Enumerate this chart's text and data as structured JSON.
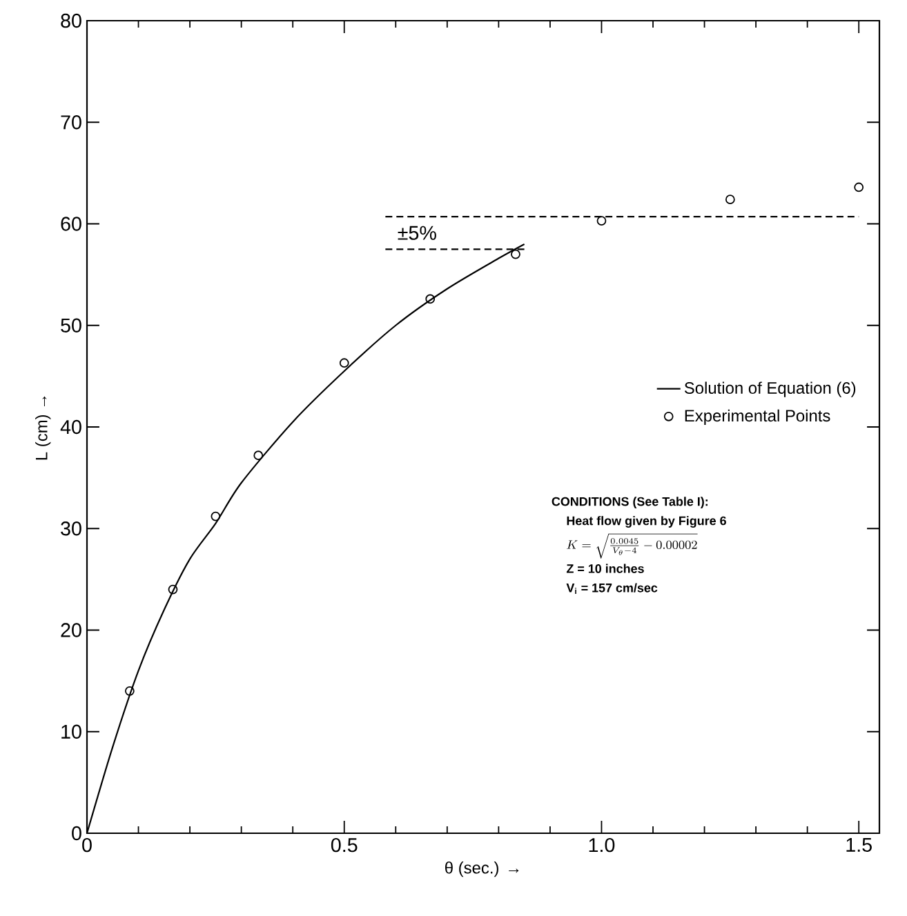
{
  "chart_data": {
    "type": "line",
    "xlabel": "θ (sec.) →",
    "ylabel": "L (cm) →",
    "xlim": [
      0,
      1.54
    ],
    "ylim": [
      0,
      80
    ],
    "xticks": [
      0,
      {
        "value": 0.1,
        "label": null
      },
      {
        "value": 0.2,
        "label": null
      },
      {
        "value": 0.3,
        "label": null
      },
      {
        "value": 0.4,
        "label": null
      },
      0.5,
      {
        "value": 0.6,
        "label": null
      },
      {
        "value": 0.7,
        "label": null
      },
      {
        "value": 0.8,
        "label": null
      },
      {
        "value": 0.9,
        "label": null
      },
      {
        "value": 1,
        "label": "1.0"
      },
      {
        "value": 1.1,
        "label": null
      },
      {
        "value": 1.2,
        "label": null
      },
      {
        "value": 1.3,
        "label": null
      },
      {
        "value": 1.4,
        "label": null
      },
      1.5
    ],
    "yticks": [
      0,
      10,
      20,
      30,
      40,
      50,
      60,
      70,
      80
    ],
    "legend": "right",
    "series": [
      {
        "name": "Solution of Equation (6)",
        "color": "#000000",
        "marker": "none",
        "line_style": "solid",
        "x": [
          0,
          0.05,
          0.1,
          0.15,
          0.2,
          0.25,
          0.3,
          0.4,
          0.5,
          0.6,
          0.7,
          0.8,
          0.85
        ],
        "values": [
          0,
          8.5,
          16,
          22,
          27,
          30.5,
          34.5,
          40.5,
          45.5,
          50,
          53.6,
          56.6,
          58
        ]
      },
      {
        "name": "Experimental Points",
        "type": "scatter",
        "color": "#000000",
        "marker": "circle",
        "x": [
          0.083,
          0.167,
          0.25,
          0.333,
          0.5,
          0.667,
          0.833,
          1.0,
          1.25,
          1.5
        ],
        "values": [
          14,
          24,
          31.2,
          37.2,
          46.3,
          52.6,
          57,
          60.3,
          62.4,
          63.6
        ]
      },
      {
        "color": "#000000",
        "marker": "none",
        "line_style": "dashed",
        "x": [
          0.58,
          1.5
        ],
        "values": [
          60.7,
          60.7
        ]
      },
      {
        "color": "#000000",
        "marker": "none",
        "line_style": "dashed",
        "x": [
          0.58,
          0.85
        ],
        "values": [
          57.5,
          57.5
        ]
      }
    ],
    "annotations": [
      "±5%",
      "CONDITIONS (See Table I):",
      "Heat flow given by Figure 6",
      "K = \\sqrt{\\frac{0.0045}{V_\\theta - 4} - 0.00002}",
      "Z = 10 inches",
      "V$_{i}$ = 157 cm/sec"
    ]
  }
}
